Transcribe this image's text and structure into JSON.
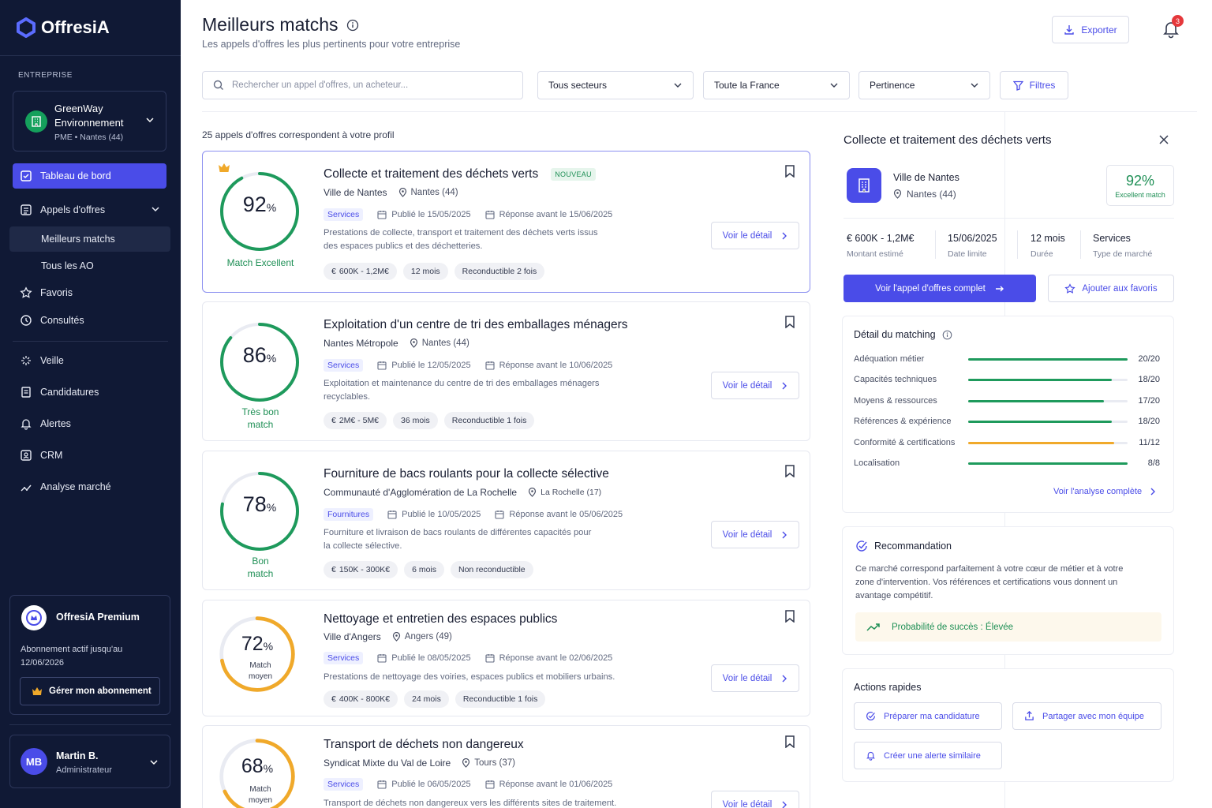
{
  "app": {
    "name_a": "Offres",
    "name_b": "iA"
  },
  "sidebar": {
    "section_label": "ENTREPRISE",
    "company": {
      "name": "GreenWay Environnement",
      "sub": "PME • Nantes (44)"
    },
    "nav": [
      {
        "label": "Tableau de bord",
        "icon": "dashboard-icon"
      },
      {
        "label": "Appels d'offres",
        "icon": "list-icon"
      },
      {
        "label": "Meilleurs matchs"
      },
      {
        "label": "Tous les AO"
      },
      {
        "label": "Favoris",
        "icon": "star-icon"
      },
      {
        "label": "Consultés",
        "icon": "history-icon"
      },
      {
        "label": "Veille",
        "icon": "radar-icon"
      },
      {
        "label": "Candidatures",
        "icon": "document-icon"
      },
      {
        "label": "Alertes",
        "icon": "bell-icon"
      },
      {
        "label": "CRM",
        "icon": "contacts-icon"
      },
      {
        "label": "Analyse marché",
        "icon": "chart-icon"
      }
    ],
    "premium": {
      "title": "OffresiA Premium",
      "text": "Abonnement actif jusqu'au 12/06/2026",
      "button": "Gérer mon abonnement"
    },
    "user": {
      "initials": "MB",
      "name": "Martin B.",
      "role": "Administrateur"
    }
  },
  "header": {
    "title": "Meilleurs matchs",
    "subtitle": "Les appels d'offres les plus pertinents pour votre entreprise",
    "export_label": "Exporter",
    "notif_count": "3"
  },
  "filters": {
    "search_placeholder": "Rechercher un appel d'offres, un acheteur...",
    "sector": "Tous secteurs",
    "region": "Toute la France",
    "sort": "Pertinence",
    "filters_label": "Filtres"
  },
  "results_count": "25 appels d'offres correspondent à votre profil",
  "cards": [
    {
      "score": "92",
      "label": "Match Excellent",
      "title": "Collecte et traitement des déchets verts",
      "badge": "NOUVEAU",
      "buyer": "Ville de Nantes",
      "location": "Nantes (44)",
      "category": "Services",
      "published": "Publié le 15/05/2025",
      "deadline": "Réponse avant le 15/06/2025",
      "description": "Prestations de collecte, transport et traitement des déchets verts issus des espaces publics et des déchetteries.",
      "tags": [
        "600K - 1,2M€",
        "12 mois",
        "Reconductible 2 fois"
      ],
      "detail": "Voir le détail"
    },
    {
      "score": "86",
      "label": "Très bon match",
      "title": "Exploitation d'un centre de tri des emballages ménagers",
      "buyer": "Nantes Métropole",
      "location": "Nantes (44)",
      "category": "Services",
      "published": "Publié le 12/05/2025",
      "deadline": "Réponse avant le 10/06/2025",
      "description": "Exploitation et maintenance du centre de tri des emballages ménagers recyclables.",
      "tags": [
        "2M€ - 5M€",
        "36 mois",
        "Reconductible 1 fois"
      ],
      "detail": "Voir le détail"
    },
    {
      "score": "78",
      "label": "Bon match",
      "title": "Fourniture de bacs roulants pour la collecte sélective",
      "buyer": "Communauté d'Agglomération de La Rochelle",
      "location": "La Rochelle (17)",
      "category": "Fournitures",
      "published": "Publié le 10/05/2025",
      "deadline": "Réponse avant le 05/06/2025",
      "description": "Fourniture et livraison de bacs roulants de différentes capacités pour la collecte sélective.",
      "tags": [
        "150K - 300K€",
        "6 mois",
        "Non reconductible"
      ],
      "detail": "Voir le détail"
    },
    {
      "score": "72",
      "label": "Match moyen",
      "title": "Nettoyage et entretien des espaces publics",
      "buyer": "Ville d'Angers",
      "location": "Angers (49)",
      "category": "Services",
      "published": "Publié le 08/05/2025",
      "deadline": "Réponse avant le 02/06/2025",
      "description": "Prestations de nettoyage des voiries, espaces publics et mobiliers urbains.",
      "tags": [
        "400K - 800K€",
        "24 mois",
        "Reconductible 1 fois"
      ],
      "detail": "Voir le détail"
    },
    {
      "score": "68",
      "label": "Match moyen",
      "title": "Transport de déchets non dangereux",
      "buyer": "Syndicat Mixte du Val de Loire",
      "location": "Tours (37)",
      "category": "Services",
      "published": "Publié le 06/05/2025",
      "deadline": "Réponse avant le 01/06/2025",
      "description": "Transport de déchets non dangereux vers les différents sites de traitement.",
      "tags": [],
      "detail": "Voir le détail"
    }
  ],
  "panel": {
    "title": "Collecte et traitement des déchets verts",
    "buyer": "Ville de Nantes",
    "location": "Nantes (44)",
    "score": "92%",
    "score_label": "Excellent match",
    "kpis": [
      {
        "value": "€ 600K - 1,2M€",
        "label": "Montant estimé"
      },
      {
        "value": "15/06/2025",
        "label": "Date limite"
      },
      {
        "value": "12 mois",
        "label": "Durée"
      },
      {
        "value": "Services",
        "label": "Type de marché"
      }
    ],
    "primary_button": "Voir l'appel d'offres complet",
    "fav_button": "Ajouter aux favoris",
    "matching_title": "Détail du matching",
    "matching": [
      {
        "label": "Adéquation métier",
        "value": "20/20",
        "score": 20,
        "max": 20,
        "color": "#1e9a5c"
      },
      {
        "label": "Capacités techniques",
        "value": "18/20",
        "score": 18,
        "max": 20,
        "color": "#1e9a5c"
      },
      {
        "label": "Moyens & ressources",
        "value": "17/20",
        "score": 17,
        "max": 20,
        "color": "#1e9a5c"
      },
      {
        "label": "Références & expérience",
        "value": "18/20",
        "score": 18,
        "max": 20,
        "color": "#1e9a5c"
      },
      {
        "label": "Conformité & certifications",
        "value": "11/12",
        "score": 11,
        "max": 12,
        "color": "#f0a92a"
      },
      {
        "label": "Localisation",
        "value": "8/8",
        "score": 8,
        "max": 8,
        "color": "#1e9a5c"
      }
    ],
    "analysis_link": "Voir l'analyse complète",
    "reco_title": "Recommandation",
    "reco_text": "Ce marché correspond parfaitement à votre cœur de métier et à votre zone d'intervention. Vos références et certifications vous donnent un avantage compétitif.",
    "reco_prob": "Probabilité de succès : Élevée",
    "actions_title": "Actions rapides",
    "actions": [
      "Préparer ma candidature",
      "Partager avec mon équipe",
      "Créer une alerte similaire"
    ]
  },
  "colors": {
    "accent": "#4a4ce8",
    "green": "#1e9a5c",
    "orange": "#f0a92a",
    "sidebar": "#101935"
  }
}
